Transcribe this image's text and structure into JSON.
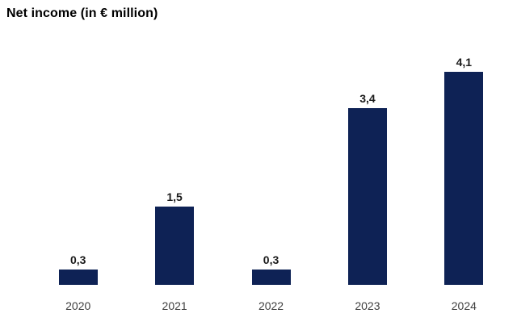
{
  "title": "Net income (in € million)",
  "colors": {
    "bar": "#0E2255",
    "title_text": "#000000",
    "value_label_text": "#1a1a1a",
    "axis_label_text": "#404040",
    "background": "#ffffff"
  },
  "chart_data": {
    "type": "bar",
    "title": "Net income (in € million)",
    "categories": [
      "2020",
      "2021",
      "2022",
      "2023",
      "2024"
    ],
    "values": [
      0.3,
      1.5,
      0.3,
      3.4,
      4.1
    ],
    "value_labels": [
      "0,3",
      "1,5",
      "0,3",
      "3,4",
      "4,1"
    ],
    "xlabel": "",
    "ylabel": "",
    "ylim": [
      0,
      4.5
    ],
    "grid": false,
    "legend": false,
    "y_axis_visible": false,
    "x_axis_line_visible": false,
    "bar_color": "#0E2255"
  }
}
